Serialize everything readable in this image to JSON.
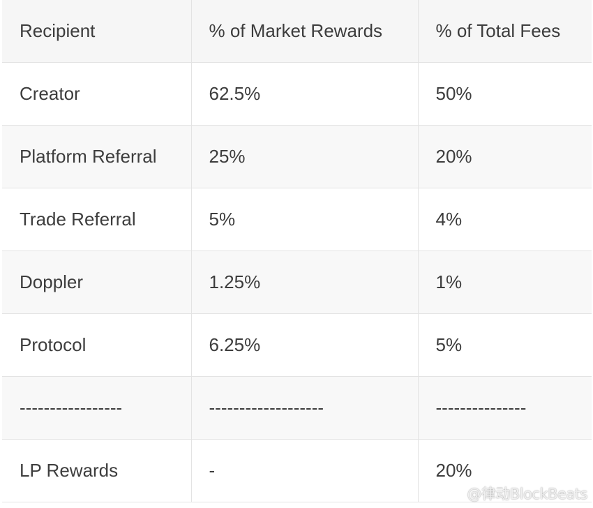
{
  "table": {
    "headers": [
      "Recipient",
      "% of Market Rewards",
      "% of Total Fees"
    ],
    "rows": [
      [
        "Creator",
        "62.5%",
        "50%"
      ],
      [
        "Platform Referral",
        "25%",
        "20%"
      ],
      [
        "Trade Referral",
        "5%",
        "4%"
      ],
      [
        "Doppler",
        "1.25%",
        "1%"
      ],
      [
        "Protocol",
        "6.25%",
        "5%"
      ],
      [
        "-----------------",
        "-------------------",
        "---------------"
      ],
      [
        "LP Rewards",
        "-",
        "20%"
      ]
    ]
  },
  "watermark": {
    "text": "@律动BlockBeats",
    "icon": "weibo-logo-icon"
  }
}
